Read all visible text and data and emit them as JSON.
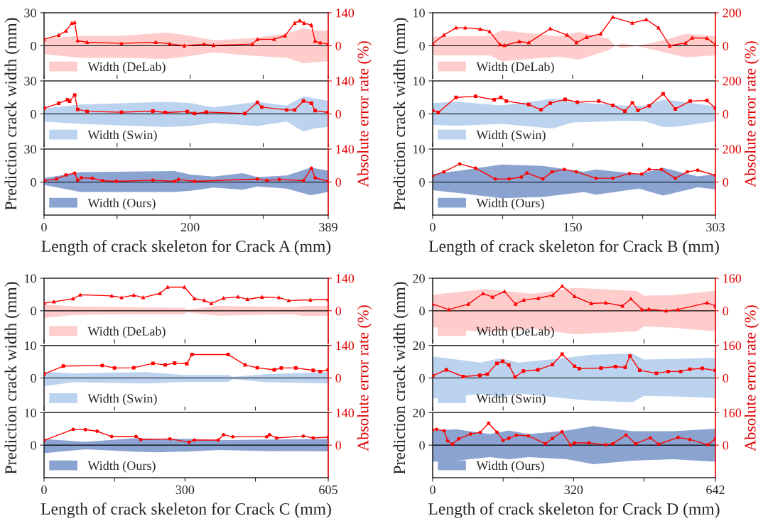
{
  "chart_data": [
    {
      "type": "area",
      "xlim": [
        0,
        389
      ],
      "xticks": [
        0,
        {
          "value": 100,
          "label": null
        },
        200,
        {
          "value": 300,
          "label": null
        },
        389
      ],
      "ylim": [
        -30,
        30
      ],
      "yticks": [
        0,
        30
      ],
      "y2lim": [
        -140,
        140
      ],
      "y2ticks": [
        0,
        140
      ],
      "tick_labels": "y",
      "legend": "bottom left",
      "ref_lines": [
        {
          "axis": "y",
          "value": 0,
          "color": "#000000"
        }
      ],
      "series": [
        {
          "name": "Width (DeLab)",
          "color": "#ffcccc",
          "x": [
            0,
            50,
            106,
            166,
            192,
            232,
            285,
            332,
            355,
            371,
            389
          ],
          "values": [
            null,
            null,
            null,
            null,
            null,
            null,
            null,
            null,
            null,
            null,
            null
          ],
          "upper": [
            7,
            9,
            9,
            12,
            10,
            5,
            7,
            11,
            16,
            14,
            13.5
          ],
          "lower": [
            -7.6,
            -11,
            -11,
            -12,
            -10,
            -6,
            -9,
            -11,
            -16,
            -15,
            -14
          ]
        },
        {
          "type": "line",
          "axis": "y2",
          "color": "#ff0000",
          "marker": "triangle",
          "x": [
            0,
            20,
            30,
            38,
            42,
            46,
            59,
            106,
            153,
            172,
            192,
            219,
            232,
            285,
            292,
            315,
            330,
            343,
            350,
            356,
            366,
            371,
            378,
            389
          ],
          "values": [
            28,
            45,
            63,
            96,
            99,
            22,
            15,
            10,
            15,
            8,
            0,
            7,
            2,
            7,
            27,
            28,
            43,
            96,
            107,
            96,
            88,
            20,
            13,
            8
          ]
        }
      ]
    },
    {
      "type": "area",
      "xlim": [
        0,
        389
      ],
      "xticks": [
        0,
        {
          "value": 100,
          "label": null
        },
        200,
        {
          "value": 300,
          "label": null
        },
        389
      ],
      "ylim": [
        -30,
        30
      ],
      "yticks": [
        0,
        30
      ],
      "y2lim": [
        -140,
        140
      ],
      "y2ticks": [
        0,
        140
      ],
      "tick_labels": "y",
      "legend": "bottom left",
      "ylabel": "Prediction crack width (mm)",
      "y2label": "Absolute error rate (%)",
      "ref_lines": [
        {
          "axis": "y",
          "value": 0,
          "color": "#000000"
        }
      ],
      "series": [
        {
          "name": "Width (Swin)",
          "color": "#bcd3ef",
          "x": [
            0,
            50,
            166,
            199,
            232,
            292,
            332,
            355,
            371,
            389
          ],
          "values": [
            null,
            null,
            null,
            null,
            null,
            null,
            null,
            null,
            null,
            null
          ],
          "upper": [
            5,
            8.5,
            11,
            10,
            6,
            11,
            7.5,
            16,
            14,
            12
          ],
          "lower": [
            -7,
            -9,
            -12,
            -11,
            -8,
            -11,
            -7,
            -16,
            -13,
            -12
          ]
        },
        {
          "type": "line",
          "axis": "y2",
          "color": "#ff0000",
          "marker": "square",
          "x": [
            0,
            20,
            32,
            35,
            42,
            46,
            59,
            106,
            149,
            166,
            196,
            206,
            222,
            275,
            292,
            298,
            332,
            343,
            355,
            366,
            371,
            389
          ],
          "values": [
            24,
            45,
            60,
            54,
            80,
            19,
            11,
            7,
            12,
            6,
            10,
            2,
            8,
            2,
            49,
            29,
            17,
            17,
            55,
            45,
            14,
            6
          ]
        }
      ]
    },
    {
      "type": "area",
      "xlim": [
        0,
        389
      ],
      "xticks": [
        0,
        {
          "value": 100,
          "label": null
        },
        200,
        {
          "value": 300,
          "label": null
        },
        389
      ],
      "ylim": [
        -30,
        30
      ],
      "yticks": [
        0,
        30
      ],
      "y2lim": [
        -140,
        140
      ],
      "y2ticks": [
        0,
        140
      ],
      "legend": "bottom left",
      "xlabel": "Length of crack skeleton for Crack A (mm)",
      "ref_lines": [
        {
          "axis": "y",
          "value": 0,
          "color": "#000000"
        }
      ],
      "series": [
        {
          "name": "Width (Ours)",
          "color": "#8ba3d1",
          "x": [
            0,
            50,
            179,
            199,
            232,
            272,
            292,
            332,
            365,
            389
          ],
          "values": [
            null,
            null,
            null,
            null,
            null,
            null,
            null,
            null,
            null,
            null
          ],
          "upper": [
            3.5,
            9,
            10,
            7,
            5,
            8,
            4.5,
            6,
            13,
            10.5
          ],
          "lower": [
            -2.6,
            -9,
            -9,
            -8,
            -5,
            -7,
            -4,
            -6,
            -12,
            -9
          ]
        },
        {
          "type": "line",
          "axis": "y2",
          "color": "#ff0000",
          "marker": "circle",
          "x": [
            0,
            17,
            30,
            42,
            46,
            51,
            66,
            80,
            99,
            149,
            179,
            184,
            206,
            292,
            305,
            322,
            355,
            366,
            371,
            389
          ],
          "values": [
            6,
            13,
            30,
            38,
            8,
            18,
            16,
            6,
            3,
            8,
            3,
            11,
            3,
            13,
            7,
            11,
            6,
            59,
            18,
            3
          ]
        }
      ]
    },
    {
      "type": "area",
      "xlim": [
        0,
        303
      ],
      "xticks": [
        0,
        {
          "value": 75,
          "label": null
        },
        150,
        {
          "value": 225,
          "label": null
        },
        303
      ],
      "ylim": [
        -10,
        10
      ],
      "yticks": [
        0,
        10
      ],
      "y2lim": [
        -200,
        200
      ],
      "y2ticks": [
        0,
        200
      ],
      "tick_labels": "y",
      "legend": "bottom left",
      "ref_lines": [
        {
          "axis": "y",
          "value": 0,
          "color": "#000000"
        }
      ],
      "series": [
        {
          "name": "Width (DeLab)",
          "color": "#ffcccc",
          "x": [
            0,
            61,
            74,
            134,
            157,
            188,
            196,
            203,
            219,
            232,
            248,
            271,
            303
          ],
          "values": [
            null,
            null,
            null,
            null,
            null,
            null,
            null,
            null,
            null,
            null,
            null,
            null,
            null
          ],
          "upper": [
            2.8,
            3,
            4.7,
            2.9,
            4.2,
            2.2,
            0,
            0.7,
            0,
            0.7,
            1.8,
            3.6,
            2.9
          ],
          "lower": [
            -2.9,
            -2.9,
            -4.7,
            -3.3,
            -4.2,
            -1.4,
            0,
            -0.7,
            -0.1,
            -0.9,
            -2,
            -3.5,
            -2.9
          ]
        },
        {
          "type": "line",
          "axis": "y2",
          "color": "#ff0000",
          "marker": "triangle",
          "x": [
            0,
            12,
            25,
            35,
            51,
            61,
            72,
            77,
            93,
            103,
            126,
            144,
            154,
            165,
            180,
            193,
            214,
            229,
            242,
            254,
            271,
            278,
            294,
            303
          ],
          "values": [
            14,
            65,
            109,
            109,
            101,
            87,
            7,
            3,
            26,
            19,
            104,
            65,
            19,
            51,
            72,
            174,
            138,
            159,
            109,
            0,
            17,
            48,
            46,
            7
          ]
        }
      ]
    },
    {
      "type": "area",
      "xlim": [
        0,
        303
      ],
      "xticks": [
        0,
        {
          "value": 75,
          "label": null
        },
        150,
        {
          "value": 225,
          "label": null
        },
        303
      ],
      "ylim": [
        -10,
        10
      ],
      "yticks": [
        0,
        10
      ],
      "y2lim": [
        -200,
        200
      ],
      "y2ticks": [
        0,
        200
      ],
      "tick_labels": "y",
      "legend": "bottom left",
      "ylabel": "Prediction crack width (mm)",
      "y2label": "Absolute error rate (%)",
      "ref_lines": [
        {
          "axis": "y",
          "value": 0,
          "color": "#000000"
        }
      ],
      "series": [
        {
          "name": "Width (Swin)",
          "color": "#bcd3ef",
          "x": [
            0,
            25,
            74,
            129,
            150,
            206,
            227,
            247,
            260,
            303
          ],
          "values": [
            null,
            null,
            null,
            null,
            null,
            null,
            null,
            null,
            null,
            null
          ],
          "upper": [
            3.3,
            3.7,
            2.6,
            4.6,
            3.6,
            2.5,
            2.5,
            4.3,
            4,
            2.3
          ],
          "lower": [
            -3.3,
            -3.6,
            -3,
            -4.4,
            -2.6,
            -2.1,
            -2.2,
            -4,
            -3.9,
            -2.2
          ]
        },
        {
          "type": "line",
          "axis": "y2",
          "color": "#ff0000",
          "marker": "square",
          "x": [
            0,
            6,
            25,
            46,
            66,
            73,
            79,
            103,
            116,
            126,
            142,
            155,
            178,
            193,
            206,
            214,
            220,
            232,
            247,
            260,
            276,
            294,
            303
          ],
          "values": [
            20,
            9,
            100,
            107,
            86,
            100,
            78,
            57,
            25,
            65,
            88,
            71,
            78,
            52,
            17,
            67,
            22,
            49,
            122,
            30,
            78,
            81,
            35
          ]
        }
      ]
    },
    {
      "type": "area",
      "xlim": [
        0,
        303
      ],
      "xticks": [
        0,
        {
          "value": 75,
          "label": null
        },
        150,
        {
          "value": 225,
          "label": null
        },
        303
      ],
      "ylim": [
        -10,
        10
      ],
      "yticks": [
        0,
        10
      ],
      "y2lim": [
        -200,
        200
      ],
      "y2ticks": [
        0,
        200
      ],
      "legend": "bottom left",
      "xlabel": "Length of crack skeleton for Crack B (mm)",
      "ref_lines": [
        {
          "axis": "y",
          "value": 0,
          "color": "#000000"
        }
      ],
      "series": [
        {
          "name": "Width (Ours)",
          "color": "#8ba3d1",
          "x": [
            0,
            30,
            74,
            118,
            162,
            175,
            221,
            247,
            284,
            303
          ],
          "values": [
            null,
            null,
            null,
            null,
            null,
            null,
            null,
            null,
            null,
            null
          ],
          "upper": [
            2.4,
            3.5,
            5.3,
            4.9,
            3.1,
            3.8,
            2.4,
            4.3,
            1.7,
            2.4
          ],
          "lower": [
            -2.5,
            -3.4,
            -4.9,
            -4.5,
            -3,
            -3.8,
            -2,
            -4.1,
            -1.6,
            -2.2
          ]
        },
        {
          "type": "line",
          "axis": "y2",
          "color": "#ff0000",
          "marker": "circle",
          "x": [
            0,
            12,
            29,
            46,
            67,
            82,
            95,
            101,
            118,
            128,
            141,
            154,
            175,
            193,
            211,
            224,
            232,
            245,
            260,
            273,
            284,
            303
          ],
          "values": [
            38,
            62,
            110,
            84,
            19,
            19,
            30,
            55,
            19,
            62,
            77,
            62,
            23,
            23,
            52,
            48,
            77,
            77,
            23,
            62,
            72,
            41
          ]
        }
      ]
    },
    {
      "type": "area",
      "xlim": [
        0,
        605
      ],
      "xticks": [
        0,
        {
          "value": 150,
          "label": null
        },
        300,
        {
          "value": 450,
          "label": null
        },
        605
      ],
      "ylim": [
        -10,
        10
      ],
      "yticks": [
        0,
        10
      ],
      "y2lim": [
        -140,
        140
      ],
      "y2ticks": [
        0,
        140
      ],
      "tick_labels": "y",
      "legend": "bottom left",
      "ref_lines": [
        {
          "axis": "y",
          "value": 0,
          "color": "#000000"
        }
      ],
      "series": [
        {
          "name": "Width (DeLab)",
          "color": "#ffcccc",
          "x": [
            0,
            62,
            165,
            299,
            304,
            371,
            526,
            552,
            605
          ],
          "values": [
            null,
            null,
            null,
            null,
            null,
            null,
            null,
            null,
            null
          ],
          "upper": [
            1.9,
            1.3,
            1.1,
            0.9,
            0.4,
            1.5,
            1.1,
            1.5,
            1.5
          ],
          "lower": [
            -2.2,
            -1.3,
            -1.1,
            -1.1,
            -0.5,
            -1.5,
            -1.1,
            -1.6,
            -1.5
          ]
        },
        {
          "type": "line",
          "axis": "y2",
          "color": "#ff0000",
          "marker": "triangle",
          "x": [
            0,
            21,
            62,
            77,
            144,
            165,
            191,
            211,
            247,
            263,
            299,
            320,
            341,
            356,
            382,
            413,
            433,
            464,
            500,
            521,
            567,
            605
          ],
          "values": [
            33,
            39,
            52,
            69,
            64,
            57,
            67,
            57,
            75,
            102,
            102,
            52,
            45,
            31,
            54,
            60,
            49,
            59,
            57,
            44,
            47,
            49
          ]
        }
      ]
    },
    {
      "type": "area",
      "xlim": [
        0,
        605
      ],
      "xticks": [
        0,
        {
          "value": 150,
          "label": null
        },
        300,
        {
          "value": 450,
          "label": null
        },
        605
      ],
      "ylim": [
        -10,
        10
      ],
      "yticks": [
        0,
        10
      ],
      "y2lim": [
        -140,
        140
      ],
      "y2ticks": [
        0,
        140
      ],
      "tick_labels": "y",
      "legend": "bottom left",
      "ylabel": "Prediction crack width (mm)",
      "y2label": "Absolute error rate (%)",
      "ref_lines": [
        {
          "axis": "y",
          "value": 0,
          "color": "#000000"
        }
      ],
      "series": [
        {
          "name": "Width (Swin)",
          "color": "#bcd3ef",
          "x": [
            0,
            62,
            217,
            299,
            392,
            402,
            475,
            605
          ],
          "values": [
            null,
            null,
            null,
            null,
            null,
            null,
            null,
            null
          ],
          "upper": [
            1.9,
            1.4,
            1.8,
            0.9,
            0.9,
            0.3,
            1.2,
            1.8
          ],
          "lower": [
            -2.5,
            -1.3,
            -1.7,
            -1.2,
            -1.2,
            -0.4,
            -1.3,
            -1.7
          ]
        },
        {
          "type": "line",
          "axis": "y2",
          "color": "#ff0000",
          "marker": "square",
          "x": [
            0,
            41,
            124,
            150,
            191,
            232,
            258,
            278,
            304,
            315,
            392,
            428,
            454,
            490,
            505,
            536,
            573,
            588,
            605
          ],
          "values": [
            17,
            51,
            54,
            43,
            44,
            63,
            56,
            64,
            61,
            101,
            101,
            56,
            44,
            35,
            43,
            43,
            33,
            28,
            35
          ]
        }
      ]
    },
    {
      "type": "area",
      "xlim": [
        0,
        605
      ],
      "xticks": [
        0,
        {
          "value": 150,
          "label": null
        },
        300,
        {
          "value": 450,
          "label": null
        },
        605
      ],
      "ylim": [
        -10,
        10
      ],
      "yticks": [
        0,
        10
      ],
      "y2lim": [
        -140,
        140
      ],
      "y2ticks": [
        0,
        140
      ],
      "legend": "bottom left",
      "xlabel": "Length of crack skeleton for Crack C (mm)",
      "ref_lines": [
        {
          "axis": "y",
          "value": 0,
          "color": "#000000"
        }
      ],
      "series": [
        {
          "name": "Width (Ours)",
          "color": "#8ba3d1",
          "x": [
            0,
            88,
            191,
            242,
            320,
            371,
            474,
            605
          ],
          "values": [
            null,
            null,
            null,
            null,
            null,
            null,
            null,
            null
          ],
          "upper": [
            1.9,
            1,
            2.1,
            2,
            1.9,
            1.5,
            1.7,
            1.9
          ],
          "lower": [
            -2.5,
            -1.3,
            -2,
            -2.2,
            -1.9,
            -1.5,
            -1.8,
            -1.9
          ]
        },
        {
          "type": "line",
          "axis": "y2",
          "color": "#ff0000",
          "marker": "circle",
          "x": [
            0,
            62,
            88,
            113,
            144,
            196,
            206,
            268,
            309,
            320,
            371,
            382,
            402,
            474,
            480,
            495,
            552,
            573,
            605
          ],
          "values": [
            21,
            68,
            67,
            60,
            37,
            37,
            24,
            27,
            13,
            22,
            22,
            45,
            36,
            36,
            45,
            31,
            39,
            31,
            34
          ]
        }
      ]
    },
    {
      "type": "area",
      "xlim": [
        0,
        642
      ],
      "xticks": [
        0,
        {
          "value": 160,
          "label": null
        },
        320,
        {
          "value": 480,
          "label": null
        },
        642
      ],
      "ylim": [
        -20,
        20
      ],
      "yticks": [
        0,
        20
      ],
      "y2lim": [
        -160,
        160
      ],
      "y2ticks": [
        0,
        160
      ],
      "tick_labels": "y",
      "legend": "bottom left",
      "ref_lines": [
        {
          "axis": "y",
          "value": 0,
          "color": "#000000"
        }
      ],
      "series": [
        {
          "name": "Width (DeLab)",
          "color": "#ffcccc",
          "x": [
            0,
            119,
            228,
            322,
            464,
            480,
            546,
            642
          ],
          "values": [
            null,
            null,
            null,
            null,
            null,
            null,
            null,
            null
          ],
          "upper": [
            9.9,
            13.3,
            10.4,
            14.1,
            12.1,
            9.3,
            9.6,
            12.3
          ],
          "lower": [
            -10,
            -13.3,
            -11.1,
            -14.4,
            -12.6,
            -9.6,
            -10.4,
            -12.6
          ]
        },
        {
          "type": "line",
          "axis": "y2",
          "color": "#ff0000",
          "marker": "triangle",
          "x": [
            0,
            37,
            81,
            114,
            136,
            163,
            188,
            207,
            240,
            273,
            294,
            322,
            360,
            393,
            431,
            450,
            475,
            491,
            530,
            557,
            623,
            642
          ],
          "values": [
            33,
            6,
            33,
            85,
            68,
            95,
            33,
            53,
            62,
            77,
            122,
            71,
            36,
            39,
            24,
            59,
            6,
            8,
            0,
            6,
            39,
            24
          ]
        }
      ]
    },
    {
      "type": "area",
      "xlim": [
        0,
        642
      ],
      "xticks": [
        0,
        {
          "value": 160,
          "label": null
        },
        320,
        {
          "value": 480,
          "label": null
        },
        642
      ],
      "ylim": [
        -20,
        20
      ],
      "yticks": [
        0,
        20
      ],
      "y2lim": [
        -160,
        160
      ],
      "y2ticks": [
        0,
        160
      ],
      "tick_labels": "y",
      "legend": "bottom left",
      "ylabel": "Prediction crack width (mm)",
      "y2label": "Absolute error rate (%)",
      "ref_lines": [
        {
          "axis": "y",
          "value": 0,
          "color": "#000000"
        }
      ],
      "series": [
        {
          "name": "Width (Swin)",
          "color": "#bcd3ef",
          "x": [
            0,
            108,
            152,
            196,
            305,
            354,
            453,
            480,
            546,
            642
          ],
          "values": [
            null,
            null,
            null,
            null,
            null,
            null,
            null,
            null,
            null,
            null
          ],
          "upper": [
            13.2,
            9.5,
            12,
            9.5,
            12.4,
            14.2,
            15,
            11.3,
            11.7,
            12.4
          ],
          "lower": [
            -12.7,
            -9.8,
            -11.7,
            -9.5,
            -12.7,
            -13.9,
            -15,
            -11,
            -11.3,
            -12.3
          ]
        },
        {
          "type": "line",
          "axis": "y2",
          "color": "#ff0000",
          "marker": "square",
          "x": [
            0,
            31,
            69,
            107,
            124,
            146,
            159,
            173,
            187,
            206,
            239,
            272,
            294,
            322,
            333,
            382,
            415,
            437,
            448,
            470,
            508,
            535,
            563,
            584,
            612,
            642
          ],
          "values": [
            11,
            40,
            7,
            13,
            19,
            72,
            82,
            64,
            5,
            34,
            40,
            66,
            117,
            58,
            46,
            49,
            56,
            52,
            108,
            38,
            23,
            32,
            32,
            43,
            47,
            37
          ]
        }
      ]
    },
    {
      "type": "area",
      "xlim": [
        0,
        642
      ],
      "xticks": [
        0,
        {
          "value": 160,
          "label": null
        },
        320,
        {
          "value": 480,
          "label": null
        },
        642
      ],
      "ylim": [
        -20,
        20
      ],
      "yticks": [
        0,
        20
      ],
      "y2lim": [
        -160,
        160
      ],
      "y2ticks": [
        0,
        160
      ],
      "legend": "bottom left",
      "xlabel": "Length of crack skeleton for Crack D (mm)",
      "ref_lines": [
        {
          "axis": "y",
          "value": 0,
          "color": "#000000"
        }
      ],
      "series": [
        {
          "name": "Width (Ours)",
          "color": "#8ba3d1",
          "x": [
            0,
            53,
            130,
            173,
            217,
            305,
            365,
            453,
            546,
            642
          ],
          "values": [
            null,
            null,
            null,
            null,
            null,
            null,
            null,
            null,
            null,
            null
          ],
          "upper": [
            9,
            9.8,
            6.8,
            9,
            6.8,
            9,
            11.7,
            8.6,
            8.6,
            10.1
          ],
          "lower": [
            -10.2,
            -9.5,
            -7.3,
            -8.7,
            -7.3,
            -8.7,
            -11.7,
            -9.5,
            -8.7,
            -10.2
          ]
        },
        {
          "type": "line",
          "axis": "y2",
          "color": "#ff0000",
          "marker": "circle",
          "x": [
            0,
            9,
            26,
            34,
            45,
            59,
            86,
            108,
            127,
            146,
            160,
            173,
            190,
            217,
            256,
            272,
            294,
            313,
            322,
            355,
            393,
            409,
            439,
            461,
            494,
            513,
            557,
            584,
            625,
            642
          ],
          "values": [
            75,
            78,
            71,
            21,
            5,
            31,
            55,
            63,
            108,
            64,
            23,
            34,
            49,
            46,
            7,
            33,
            66,
            1,
            11,
            11,
            2,
            7,
            50,
            7,
            36,
            5,
            38,
            28,
            2,
            31
          ]
        }
      ]
    }
  ]
}
